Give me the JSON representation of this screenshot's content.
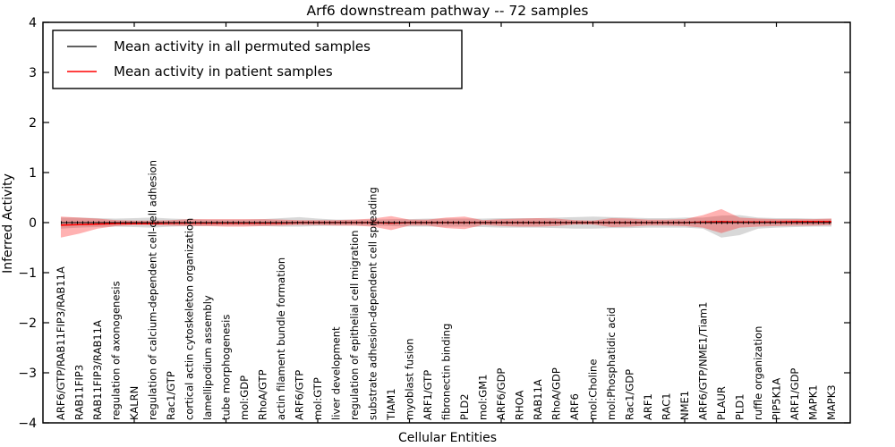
{
  "title": "Arf6 downstream pathway -- 72 samples",
  "legend": {
    "items": [
      {
        "label": "Mean activity in all permuted samples",
        "color": "#000000"
      },
      {
        "label": "Mean activity in patient samples",
        "color": "#ff0000"
      }
    ],
    "position": "upper left"
  },
  "colors": {
    "permuted_line": "#000000",
    "patient_line": "#ff0000",
    "permuted_band": "rgba(125,125,125,0.30)",
    "patient_band": "rgba(255,0,0,0.30)",
    "axis": "#000000",
    "background": "#ffffff"
  },
  "chart_data": {
    "type": "line",
    "title": "Arf6 downstream pathway -- 72 samples",
    "xlabel": "Cellular Entities",
    "ylabel": "Inferred Activity",
    "ylim": [
      -4,
      4
    ],
    "yticks": [
      -4,
      -3,
      -2,
      -1,
      0,
      1,
      2,
      3,
      4
    ],
    "grid": false,
    "legend_position": "upper left",
    "categories": [
      "ARF6/GTP/RAB11FIP3/RAB11A",
      "RAB11FIP3",
      "RAB11FIP3/RAB11A",
      "regulation of axonogenesis",
      "KALRN",
      "regulation of calcium-dependent cell-cell adhesion",
      "Rac1/GTP",
      "cortical actin cytoskeleton organization",
      "lamellipodium assembly",
      "tube morphogenesis",
      "mol:GDP",
      "RhoA/GTP",
      "actin filament bundle formation",
      "ARF6/GTP",
      "mol:GTP",
      "liver development",
      "regulation of epithelial cell migration",
      "substrate adhesion-dependent cell spreading",
      "TIAM1",
      "myoblast fusion",
      "ARF1/GTP",
      "fibronectin binding",
      "PLD2",
      "mol:GM1",
      "ARF6/GDP",
      "RHOA",
      "RAB11A",
      "RhoA/GDP",
      "ARF6",
      "mol:Choline",
      "mol:Phosphatidic acid",
      "Rac1/GDP",
      "ARF1",
      "RAC1",
      "NME1",
      "ARF6/GTP/NME1/Tiam1",
      "PLAUR",
      "PLD1",
      "ruffle organization",
      "PIP5K1A",
      "ARF1/GDP",
      "MAPK1",
      "MAPK3"
    ],
    "series": [
      {
        "name": "Mean activity in all permuted samples",
        "color": "#000000",
        "values": [
          0,
          0,
          0,
          0,
          0,
          0,
          0,
          0,
          0,
          0,
          0,
          0,
          0,
          0,
          0,
          0,
          0,
          0,
          0,
          0,
          0,
          0,
          0,
          0,
          0,
          0,
          0,
          0,
          0,
          0,
          0,
          0,
          0,
          0,
          0,
          0,
          0,
          0,
          0,
          0,
          0,
          0,
          0
        ]
      },
      {
        "name": "Mean activity in patient samples",
        "color": "#ff0000",
        "values": [
          -0.05,
          -0.04,
          -0.03,
          -0.02,
          -0.02,
          -0.02,
          -0.01,
          -0.01,
          -0.01,
          -0.01,
          -0.01,
          -0.01,
          -0.01,
          0,
          0,
          0,
          0,
          0,
          -0.01,
          0,
          0,
          0,
          0,
          0,
          0,
          0,
          0,
          0,
          0,
          0,
          0,
          0,
          0,
          0,
          0,
          0.01,
          0.02,
          0.01,
          0.01,
          0.01,
          0.02,
          0.02,
          0.02
        ]
      }
    ],
    "bands": [
      {
        "name": "permuted-samples-std-band",
        "color": "rgba(125,125,125,0.30)",
        "upper": [
          0.1,
          0.1,
          0.09,
          0.08,
          0.09,
          0.1,
          0.08,
          0.07,
          0.06,
          0.06,
          0.06,
          0.07,
          0.09,
          0.11,
          0.08,
          0.06,
          0.06,
          0.06,
          0.07,
          0.07,
          0.08,
          0.08,
          0.08,
          0.08,
          0.09,
          0.09,
          0.09,
          0.1,
          0.11,
          0.12,
          0.11,
          0.1,
          0.09,
          0.09,
          0.1,
          0.1,
          0.14,
          0.15,
          0.1,
          0.09,
          0.09,
          0.08,
          0.08
        ],
        "lower": [
          -0.12,
          -0.1,
          -0.09,
          -0.08,
          -0.09,
          -0.1,
          -0.08,
          -0.07,
          -0.07,
          -0.06,
          -0.06,
          -0.07,
          -0.08,
          -0.08,
          -0.07,
          -0.06,
          -0.06,
          -0.06,
          -0.07,
          -0.08,
          -0.08,
          -0.08,
          -0.08,
          -0.09,
          -0.1,
          -0.1,
          -0.1,
          -0.11,
          -0.12,
          -0.12,
          -0.11,
          -0.11,
          -0.1,
          -0.1,
          -0.1,
          -0.12,
          -0.3,
          -0.25,
          -0.12,
          -0.1,
          -0.09,
          -0.08,
          -0.08
        ]
      },
      {
        "name": "patient-samples-std-band",
        "color": "rgba(255,0,0,0.30)",
        "upper": [
          0.12,
          0.1,
          0.08,
          0.05,
          0.04,
          0.04,
          0.05,
          0.07,
          0.07,
          0.07,
          0.07,
          0.07,
          0.06,
          0.05,
          0.05,
          0.05,
          0.06,
          0.08,
          0.13,
          0.06,
          0.06,
          0.1,
          0.12,
          0.05,
          0.07,
          0.08,
          0.09,
          0.08,
          0.05,
          0.04,
          0.09,
          0.08,
          0.06,
          0.06,
          0.07,
          0.15,
          0.27,
          0.1,
          0.08,
          0.07,
          0.07,
          0.07,
          0.08
        ],
        "lower": [
          -0.3,
          -0.22,
          -0.12,
          -0.07,
          -0.05,
          -0.05,
          -0.06,
          -0.07,
          -0.07,
          -0.08,
          -0.08,
          -0.07,
          -0.06,
          -0.05,
          -0.05,
          -0.06,
          -0.06,
          -0.08,
          -0.15,
          -0.06,
          -0.06,
          -0.11,
          -0.13,
          -0.05,
          -0.07,
          -0.08,
          -0.08,
          -0.07,
          -0.04,
          -0.04,
          -0.09,
          -0.08,
          -0.06,
          -0.06,
          -0.07,
          -0.1,
          -0.21,
          -0.1,
          -0.08,
          -0.07,
          -0.06,
          -0.06,
          -0.05
        ]
      }
    ]
  }
}
